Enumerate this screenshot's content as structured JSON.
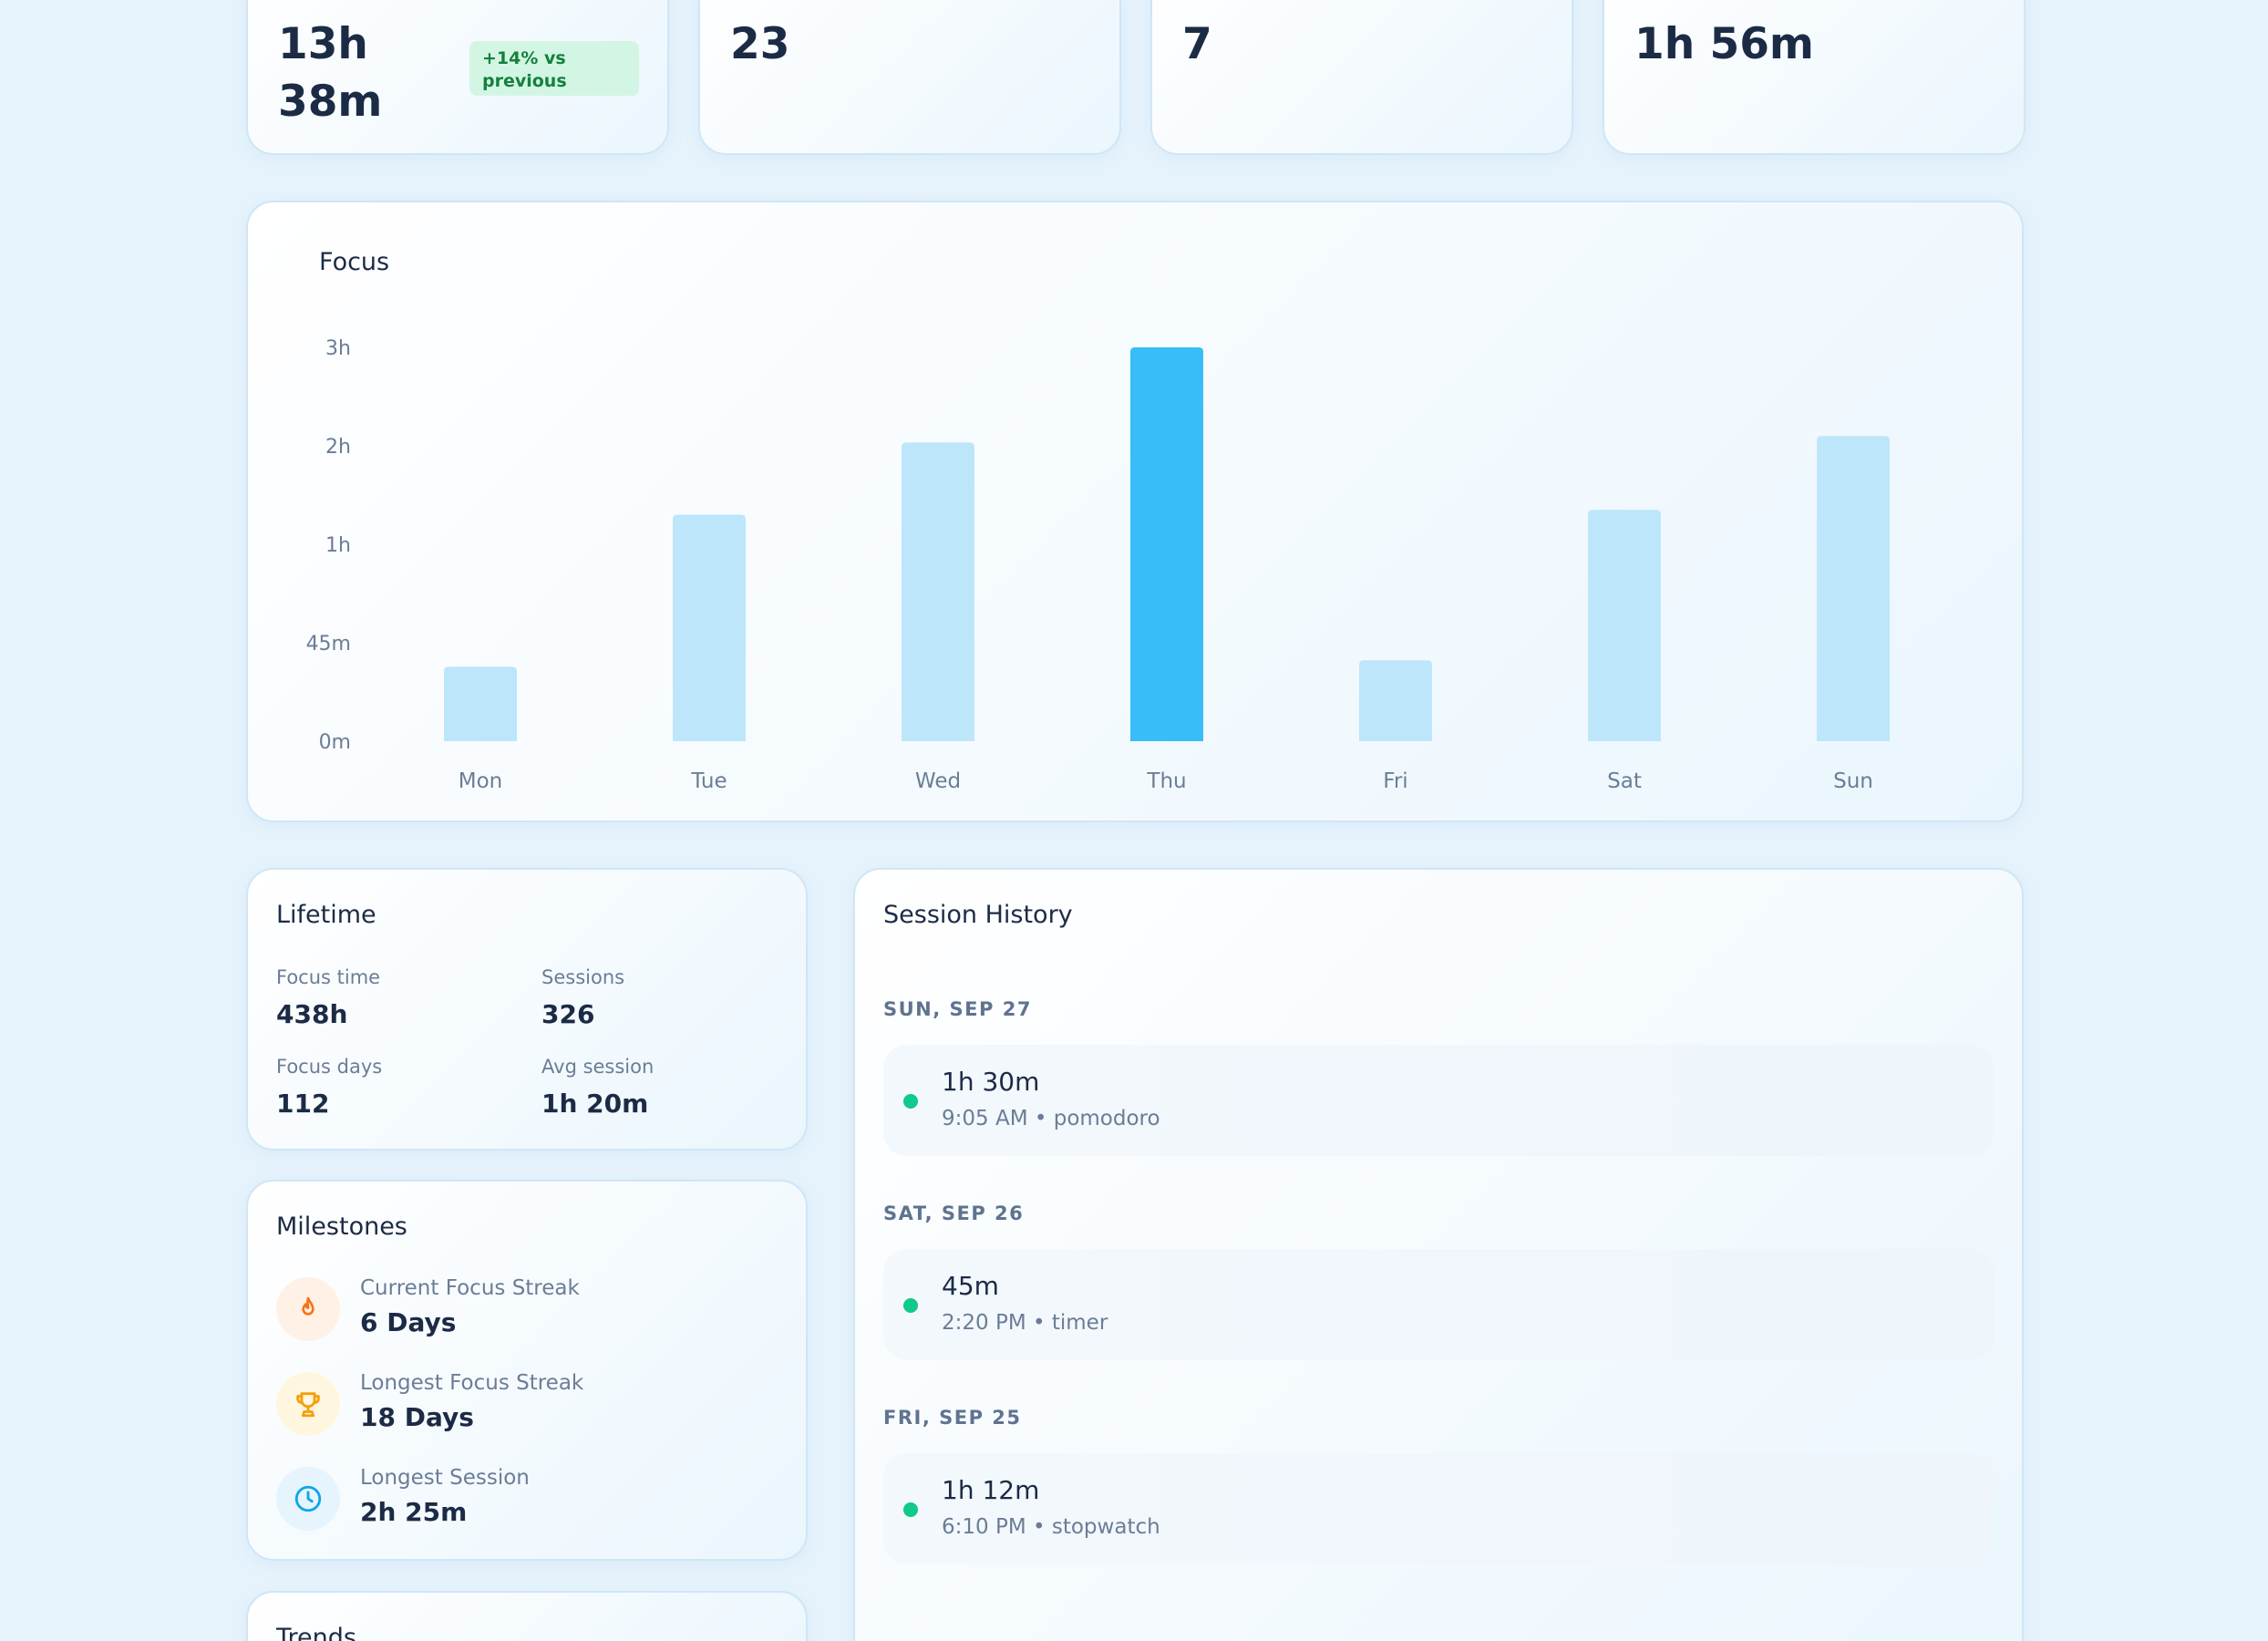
{
  "stats": [
    {
      "value_line1": "13h",
      "value_line2": "38m",
      "badge": "+14% vs previous"
    },
    {
      "value": "23"
    },
    {
      "value": "7"
    },
    {
      "value": "1h 56m"
    }
  ],
  "colors": {
    "bar": "#bde6fb",
    "bar_highlight": "#38bdf8",
    "streak": "#f97316",
    "trophy": "#f59e0b",
    "clock": "#0ea5e9",
    "session_dot": "#10c98a",
    "badge_text": "#15803d"
  },
  "chart_data": {
    "type": "bar",
    "title": "Focus",
    "categories": [
      "Mon",
      "Tue",
      "Wed",
      "Thu",
      "Fri",
      "Sat",
      "Sun"
    ],
    "values_minutes": [
      34,
      78,
      122,
      180,
      37,
      81,
      126
    ],
    "highlight_index": 3,
    "y_ticks": [
      {
        "label": "0m",
        "minutes": 0
      },
      {
        "label": "45m",
        "minutes": 45
      },
      {
        "label": "1h",
        "minutes": 60
      },
      {
        "label": "2h",
        "minutes": 120
      },
      {
        "label": "3h",
        "minutes": 180
      }
    ],
    "grid": false,
    "legend": "none"
  },
  "lifetime": {
    "title": "Lifetime",
    "focus_time_label": "Focus time",
    "focus_time_value": "438h",
    "sessions_label": "Sessions",
    "sessions_value": "326",
    "focus_days_label": "Focus days",
    "focus_days_value": "112",
    "avg_session_label": "Avg session",
    "avg_session_value": "1h 20m"
  },
  "milestones": {
    "title": "Milestones",
    "items": [
      {
        "label": "Current Focus Streak",
        "value": "6 Days",
        "icon": "flame-icon"
      },
      {
        "label": "Longest Focus Streak",
        "value": "18 Days",
        "icon": "trophy-icon"
      },
      {
        "label": "Longest Session",
        "value": "2h 25m",
        "icon": "clock-icon"
      }
    ]
  },
  "trends": {
    "title": "Trends"
  },
  "history": {
    "title": "Session History",
    "days": [
      {
        "date": "SUN, SEP 27",
        "duration": "1h 30m",
        "meta": "9:05 AM • pomodoro"
      },
      {
        "date": "SAT, SEP 26",
        "duration": "45m",
        "meta": "2:20 PM • timer"
      },
      {
        "date": "FRI, SEP 25",
        "duration": "1h 12m",
        "meta": "6:10 PM • stopwatch"
      }
    ]
  }
}
